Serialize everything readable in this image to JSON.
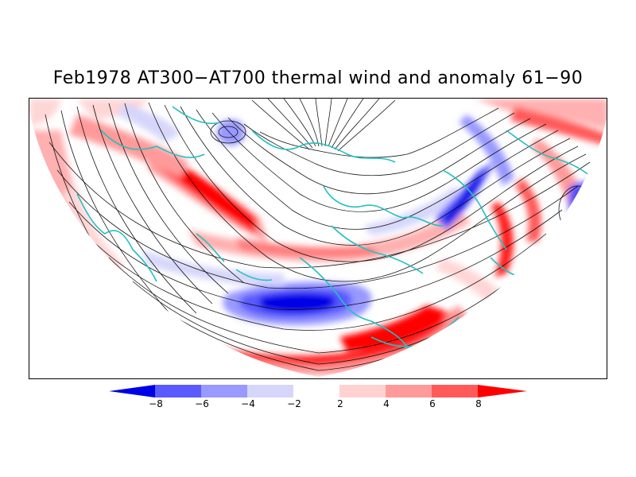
{
  "title": "Feb1978 AT300−AT700 thermal wind and anomaly 61−90",
  "legend": {
    "labels": [
      "−8",
      "−6",
      "−4",
      "−2",
      "2",
      "4",
      "6",
      "8"
    ],
    "colors": [
      "#0000e6",
      "#5a5aff",
      "#9999ff",
      "#d6d6fa",
      "#ffffff",
      "#ffd2d2",
      "#ff9a9a",
      "#ff5a5a",
      "#ff0000"
    ]
  },
  "map": {
    "projection": "northern-hemisphere polar stereographic (lower half)",
    "coastline_color": "#22c0c0",
    "streamline_color": "#000000"
  }
}
